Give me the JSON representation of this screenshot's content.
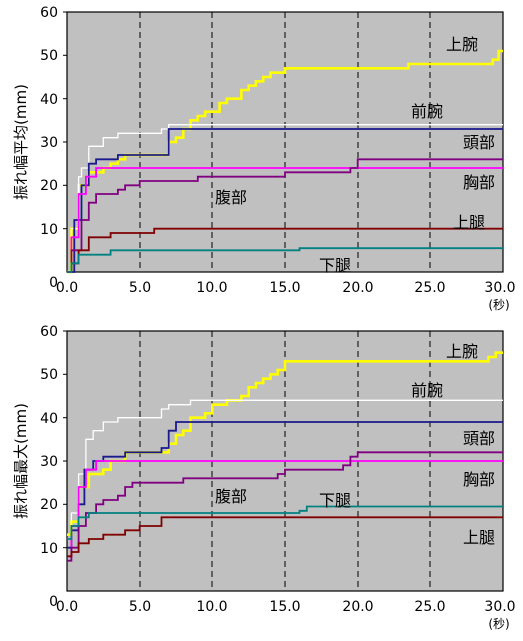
{
  "chart_data": [
    {
      "type": "line",
      "ylabel": "振れ幅平均(mm)",
      "xunit": "(秒)",
      "xlim": [
        0,
        30
      ],
      "ylim": [
        0,
        60
      ],
      "xticks": [
        "0.0",
        "5.0",
        "10.0",
        "15.0",
        "20.0",
        "25.0",
        "30.0"
      ],
      "yticks": [
        "0",
        "10",
        "20",
        "30",
        "40",
        "50",
        "60"
      ],
      "grid": "vertical-dashed",
      "series": [
        {
          "name": "上腕",
          "color": "#ffff00",
          "points": [
            [
              0,
              0
            ],
            [
              0.3,
              10
            ],
            [
              0.8,
              20
            ],
            [
              1.5,
              23
            ],
            [
              2.5,
              24
            ],
            [
              3,
              25
            ],
            [
              3.5,
              26
            ],
            [
              4,
              27
            ],
            [
              5,
              27
            ],
            [
              6.5,
              27
            ],
            [
              7,
              30
            ],
            [
              7.5,
              31
            ],
            [
              8,
              33
            ],
            [
              8.5,
              35
            ],
            [
              9,
              36
            ],
            [
              9.5,
              37
            ],
            [
              10,
              37
            ],
            [
              10.5,
              39
            ],
            [
              11,
              40
            ],
            [
              12,
              42
            ],
            [
              12.5,
              43
            ],
            [
              13,
              44
            ],
            [
              13.5,
              45
            ],
            [
              14,
              46
            ],
            [
              15,
              47
            ],
            [
              17,
              47
            ],
            [
              20,
              47
            ],
            [
              23,
              47
            ],
            [
              23.5,
              48
            ],
            [
              26,
              48
            ],
            [
              28,
              48
            ],
            [
              29.3,
              49
            ],
            [
              29.7,
              51
            ],
            [
              30,
              51
            ]
          ]
        },
        {
          "name": "前腕",
          "color": "#ffffff",
          "points": [
            [
              0,
              0
            ],
            [
              0.3,
              10
            ],
            [
              0.8,
              22
            ],
            [
              1,
              24
            ],
            [
              1.5,
              29
            ],
            [
              2.5,
              31
            ],
            [
              3.5,
              32
            ],
            [
              5,
              32
            ],
            [
              6,
              32
            ],
            [
              6.5,
              33
            ],
            [
              7,
              34
            ],
            [
              10,
              34
            ],
            [
              15,
              34
            ],
            [
              20,
              34
            ],
            [
              25,
              34
            ],
            [
              30,
              34
            ]
          ]
        },
        {
          "name": "頭部",
          "color": "#1a1a8c",
          "points": [
            [
              0,
              0
            ],
            [
              0.5,
              12
            ],
            [
              1,
              20
            ],
            [
              1.5,
              25
            ],
            [
              2,
              26
            ],
            [
              2.5,
              26
            ],
            [
              3,
              26
            ],
            [
              3.5,
              27
            ],
            [
              5,
              27
            ],
            [
              6.5,
              27
            ],
            [
              7,
              33
            ],
            [
              10,
              33
            ],
            [
              20,
              33
            ],
            [
              30,
              33
            ]
          ]
        },
        {
          "name": "胸部",
          "color": "#ff00ff",
          "points": [
            [
              0,
              0
            ],
            [
              0.3,
              8
            ],
            [
              0.8,
              18
            ],
            [
              1.3,
              22
            ],
            [
              2,
              24
            ],
            [
              3,
              24
            ],
            [
              10,
              24
            ],
            [
              20,
              24
            ],
            [
              30,
              24
            ]
          ]
        },
        {
          "name": "腹部",
          "color": "#800080",
          "points": [
            [
              0,
              0
            ],
            [
              0.3,
              5
            ],
            [
              1,
              12
            ],
            [
              1.5,
              16
            ],
            [
              2,
              18
            ],
            [
              2.5,
              18
            ],
            [
              3,
              18
            ],
            [
              3.5,
              19
            ],
            [
              4,
              20
            ],
            [
              5,
              21
            ],
            [
              7,
              21
            ],
            [
              9,
              22
            ],
            [
              12,
              22
            ],
            [
              14,
              22
            ],
            [
              15,
              23
            ],
            [
              17,
              23
            ],
            [
              19,
              23
            ],
            [
              19.5,
              24
            ],
            [
              20,
              26
            ],
            [
              25,
              26
            ],
            [
              30,
              26
            ]
          ]
        },
        {
          "name": "上腿",
          "color": "#7f0000",
          "points": [
            [
              0,
              0
            ],
            [
              0.3,
              2
            ],
            [
              0.8,
              5
            ],
            [
              1.5,
              8
            ],
            [
              3,
              9
            ],
            [
              5,
              9
            ],
            [
              6,
              10
            ],
            [
              10,
              10
            ],
            [
              20,
              10
            ],
            [
              30,
              10
            ]
          ]
        },
        {
          "name": "下腿",
          "color": "#008080",
          "points": [
            [
              0,
              0
            ],
            [
              0.3,
              2
            ],
            [
              0.8,
              4
            ],
            [
              1.5,
              4
            ],
            [
              3,
              5
            ],
            [
              5,
              5
            ],
            [
              7,
              5
            ],
            [
              10,
              5
            ],
            [
              15,
              5
            ],
            [
              16,
              5.5
            ],
            [
              20,
              5.5
            ],
            [
              25,
              5.5
            ],
            [
              30,
              5.5
            ]
          ]
        }
      ],
      "labels": [
        "上腕",
        "前腕",
        "頭部",
        "胸部",
        "腹部",
        "上腿",
        "下腿"
      ]
    },
    {
      "type": "line",
      "ylabel": "振れ幅最大(mm)",
      "xunit": "(秒)",
      "xlim": [
        0,
        30
      ],
      "ylim": [
        0,
        60
      ],
      "xticks": [
        "0.0",
        "5.0",
        "10.0",
        "15.0",
        "20.0",
        "25.0",
        "30.0"
      ],
      "yticks": [
        "0",
        "10",
        "20",
        "30",
        "40",
        "50",
        "60"
      ],
      "grid": "vertical-dashed",
      "series": [
        {
          "name": "上腕",
          "color": "#ffff00",
          "points": [
            [
              0,
              13
            ],
            [
              0.3,
              16
            ],
            [
              0.8,
              24
            ],
            [
              1.5,
              27
            ],
            [
              2.5,
              28
            ],
            [
              3,
              30
            ],
            [
              4,
              32
            ],
            [
              6,
              32
            ],
            [
              7,
              34
            ],
            [
              7.5,
              36
            ],
            [
              8,
              37
            ],
            [
              8.5,
              40
            ],
            [
              9.5,
              41
            ],
            [
              10,
              43
            ],
            [
              11,
              44
            ],
            [
              12,
              45
            ],
            [
              12.5,
              47
            ],
            [
              13,
              48
            ],
            [
              13.5,
              49
            ],
            [
              14,
              50
            ],
            [
              14.5,
              51
            ],
            [
              15,
              53
            ],
            [
              20,
              53
            ],
            [
              25,
              53
            ],
            [
              28,
              53
            ],
            [
              29,
              54
            ],
            [
              29.5,
              55
            ],
            [
              30,
              55
            ]
          ]
        },
        {
          "name": "前腕",
          "color": "#ffffff",
          "points": [
            [
              0,
              12
            ],
            [
              0.3,
              18
            ],
            [
              0.8,
              27
            ],
            [
              1.3,
              35
            ],
            [
              1.8,
              37
            ],
            [
              2.5,
              39
            ],
            [
              3.5,
              40
            ],
            [
              6,
              40
            ],
            [
              6.5,
              42
            ],
            [
              7,
              43
            ],
            [
              8.5,
              44
            ],
            [
              10,
              44
            ],
            [
              20,
              44
            ],
            [
              30,
              44
            ]
          ]
        },
        {
          "name": "頭部",
          "color": "#1a1a8c",
          "points": [
            [
              0,
              10
            ],
            [
              0.3,
              14
            ],
            [
              0.8,
              20
            ],
            [
              1.2,
              28
            ],
            [
              1.8,
              30
            ],
            [
              2.5,
              31
            ],
            [
              4,
              32
            ],
            [
              6,
              32
            ],
            [
              6.5,
              33
            ],
            [
              7,
              37
            ],
            [
              7.5,
              39
            ],
            [
              10,
              39
            ],
            [
              20,
              39
            ],
            [
              30,
              39
            ]
          ]
        },
        {
          "name": "胸部",
          "color": "#ff00ff",
          "points": [
            [
              0,
              8
            ],
            [
              0.3,
              15
            ],
            [
              0.8,
              24
            ],
            [
              1.3,
              28
            ],
            [
              2,
              30
            ],
            [
              5,
              30
            ],
            [
              10,
              30
            ],
            [
              20,
              30
            ],
            [
              30,
              30
            ]
          ]
        },
        {
          "name": "腹部",
          "color": "#800080",
          "points": [
            [
              0,
              7
            ],
            [
              0.3,
              10
            ],
            [
              0.8,
              15
            ],
            [
              1.3,
              18
            ],
            [
              2,
              20
            ],
            [
              2.5,
              21
            ],
            [
              3.5,
              22
            ],
            [
              4,
              24
            ],
            [
              4.5,
              25
            ],
            [
              7,
              25
            ],
            [
              8,
              26
            ],
            [
              12,
              26
            ],
            [
              14.5,
              27
            ],
            [
              15,
              28
            ],
            [
              17,
              28
            ],
            [
              19,
              29
            ],
            [
              19.5,
              31
            ],
            [
              20,
              32
            ],
            [
              25,
              32
            ],
            [
              30,
              32
            ]
          ]
        },
        {
          "name": "上腿",
          "color": "#7f0000",
          "points": [
            [
              0,
              8
            ],
            [
              0.3,
              9
            ],
            [
              0.8,
              11
            ],
            [
              1.5,
              12
            ],
            [
              2.5,
              13
            ],
            [
              4,
              14
            ],
            [
              5,
              15
            ],
            [
              6,
              15
            ],
            [
              6.5,
              17
            ],
            [
              10,
              17
            ],
            [
              20,
              17
            ],
            [
              30,
              17
            ]
          ]
        },
        {
          "name": "下腿",
          "color": "#008080",
          "points": [
            [
              0,
              12
            ],
            [
              0.3,
              15
            ],
            [
              0.8,
              17
            ],
            [
              1.5,
              18
            ],
            [
              5,
              18
            ],
            [
              10,
              18
            ],
            [
              15,
              18
            ],
            [
              16,
              18.5
            ],
            [
              16.5,
              19.5
            ],
            [
              20,
              19.5
            ],
            [
              25,
              19.5
            ],
            [
              30,
              19.5
            ]
          ]
        }
      ],
      "labels": [
        "上腕",
        "前腕",
        "頭部",
        "胸部",
        "腹部",
        "下腿",
        "上腿"
      ]
    }
  ]
}
